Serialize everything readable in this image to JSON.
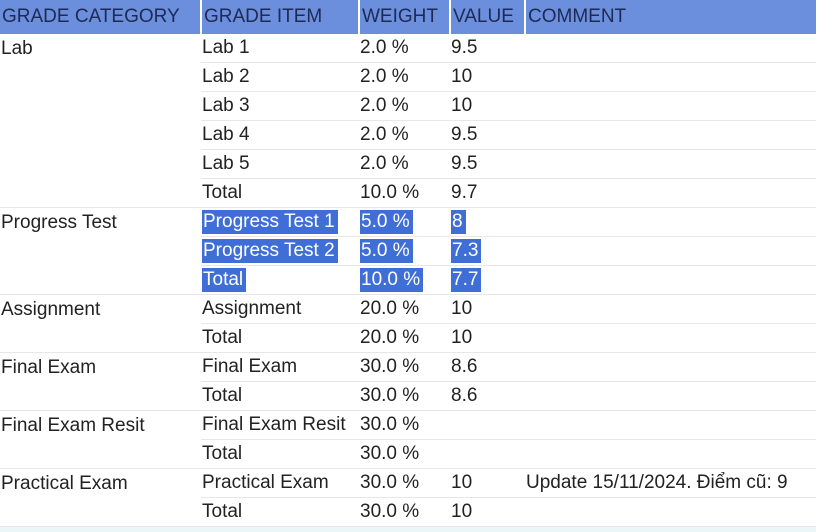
{
  "headers": {
    "category": "GRADE CATEGORY",
    "item": "GRADE ITEM",
    "weight": "WEIGHT",
    "value": "VALUE",
    "comment": "COMMENT"
  },
  "groups": [
    {
      "category": "Lab",
      "rows": [
        {
          "item": "Lab 1",
          "weight": "2.0 %",
          "value": "9.5",
          "comment": ""
        },
        {
          "item": "Lab 2",
          "weight": "2.0 %",
          "value": "10",
          "comment": ""
        },
        {
          "item": "Lab 3",
          "weight": "2.0 %",
          "value": "10",
          "comment": ""
        },
        {
          "item": "Lab 4",
          "weight": "2.0 %",
          "value": "9.5",
          "comment": ""
        },
        {
          "item": "Lab 5",
          "weight": "2.0 %",
          "value": "9.5",
          "comment": ""
        },
        {
          "item": "Total",
          "weight": "10.0 %",
          "value": "9.7",
          "comment": ""
        }
      ]
    },
    {
      "category": "Progress Test",
      "rows": [
        {
          "item": "Progress Test 1",
          "weight": "5.0 %",
          "value": "8",
          "comment": "",
          "selected": true
        },
        {
          "item": "Progress Test 2",
          "weight": "5.0 %",
          "value": "7.3",
          "comment": "",
          "selected": true
        },
        {
          "item": "Total",
          "weight": "10.0 %",
          "value": "7.7",
          "comment": "",
          "selected": true
        }
      ]
    },
    {
      "category": "Assignment",
      "rows": [
        {
          "item": "Assignment",
          "weight": "20.0 %",
          "value": "10",
          "comment": ""
        },
        {
          "item": "Total",
          "weight": "20.0 %",
          "value": "10",
          "comment": ""
        }
      ]
    },
    {
      "category": "Final Exam",
      "rows": [
        {
          "item": "Final Exam",
          "weight": "30.0 %",
          "value": "8.6",
          "comment": ""
        },
        {
          "item": "Total",
          "weight": "30.0 %",
          "value": "8.6",
          "comment": ""
        }
      ]
    },
    {
      "category": "Final Exam Resit",
      "rows": [
        {
          "item": "Final Exam Resit",
          "weight": "30.0 %",
          "value": "",
          "comment": ""
        },
        {
          "item": "Total",
          "weight": "30.0 %",
          "value": "",
          "comment": ""
        }
      ]
    },
    {
      "category": "Practical Exam",
      "rows": [
        {
          "item": "Practical Exam",
          "weight": "30.0 %",
          "value": "10",
          "comment": "Update 15/11/2024. Điểm cũ: 9"
        },
        {
          "item": "Total",
          "weight": "30.0 %",
          "value": "10",
          "comment": ""
        }
      ]
    }
  ],
  "colors": {
    "header_bg": "#6b8fdc",
    "selection_bg": "#3f6fd6"
  }
}
